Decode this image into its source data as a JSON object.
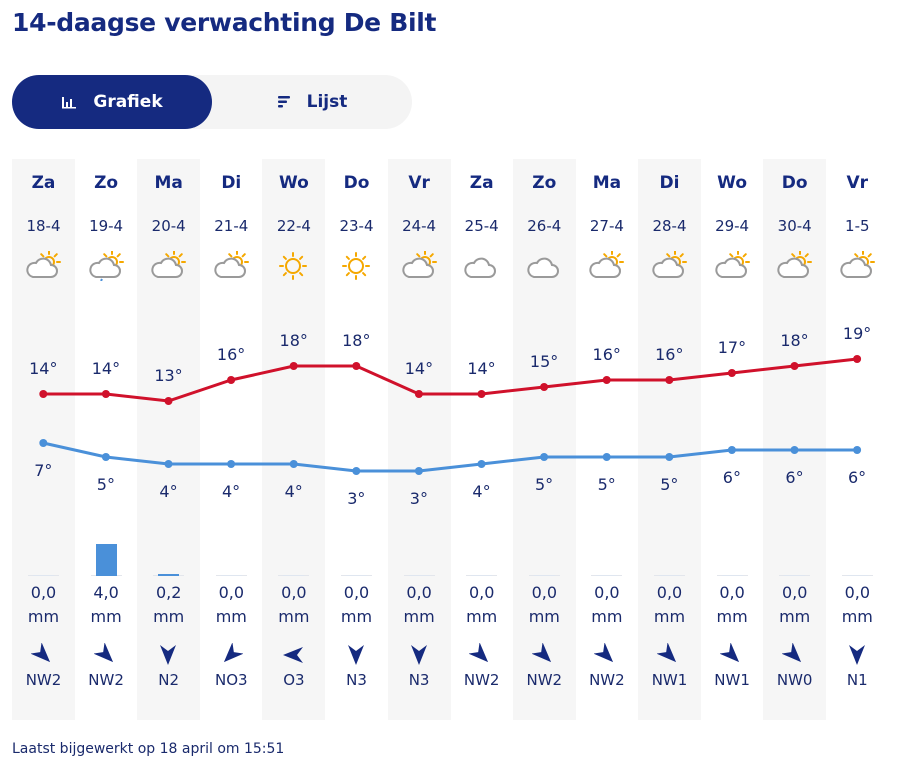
{
  "title": "14-daagse verwachting De Bilt",
  "toggle": {
    "grafiek": "Grafiek",
    "lijst": "Lijst"
  },
  "colors": {
    "brand": "#152a80",
    "max_line": "#d0112b",
    "min_line": "#4a90d9",
    "rain_bar": "#4a90d9",
    "sun": "#f5a800",
    "cloud": "#9a9a9a"
  },
  "days": [
    {
      "day": "Za",
      "date": "18-4",
      "icon": "partly-cloudy",
      "max": "14°",
      "min": "7°",
      "tmax": 14,
      "tmin": 7,
      "rain": "0,0",
      "rain_mm": 0.0,
      "unit": "mm",
      "wind": "NW2",
      "wind_dir": "NW"
    },
    {
      "day": "Zo",
      "date": "19-4",
      "icon": "partly-cloudy-rain",
      "max": "14°",
      "min": "5°",
      "tmax": 14,
      "tmin": 5,
      "rain": "4,0",
      "rain_mm": 4.0,
      "unit": "mm",
      "wind": "NW2",
      "wind_dir": "NW"
    },
    {
      "day": "Ma",
      "date": "20-4",
      "icon": "partly-cloudy",
      "max": "13°",
      "min": "4°",
      "tmax": 13,
      "tmin": 4,
      "rain": "0,2",
      "rain_mm": 0.2,
      "unit": "mm",
      "wind": "N2",
      "wind_dir": "N"
    },
    {
      "day": "Di",
      "date": "21-4",
      "icon": "partly-cloudy",
      "max": "16°",
      "min": "4°",
      "tmax": 16,
      "tmin": 4,
      "rain": "0,0",
      "rain_mm": 0.0,
      "unit": "mm",
      "wind": "NO3",
      "wind_dir": "NO"
    },
    {
      "day": "Wo",
      "date": "22-4",
      "icon": "sunny",
      "max": "18°",
      "min": "4°",
      "tmax": 18,
      "tmin": 4,
      "rain": "0,0",
      "rain_mm": 0.0,
      "unit": "mm",
      "wind": "O3",
      "wind_dir": "O"
    },
    {
      "day": "Do",
      "date": "23-4",
      "icon": "sunny",
      "max": "18°",
      "min": "3°",
      "tmax": 18,
      "tmin": 3,
      "rain": "0,0",
      "rain_mm": 0.0,
      "unit": "mm",
      "wind": "N3",
      "wind_dir": "N"
    },
    {
      "day": "Vr",
      "date": "24-4",
      "icon": "partly-cloudy",
      "max": "14°",
      "min": "3°",
      "tmax": 14,
      "tmin": 3,
      "rain": "0,0",
      "rain_mm": 0.0,
      "unit": "mm",
      "wind": "N3",
      "wind_dir": "N"
    },
    {
      "day": "Za",
      "date": "25-4",
      "icon": "cloudy",
      "max": "14°",
      "min": "4°",
      "tmax": 14,
      "tmin": 4,
      "rain": "0,0",
      "rain_mm": 0.0,
      "unit": "mm",
      "wind": "NW2",
      "wind_dir": "NW"
    },
    {
      "day": "Zo",
      "date": "26-4",
      "icon": "cloudy",
      "max": "15°",
      "min": "5°",
      "tmax": 15,
      "tmin": 5,
      "rain": "0,0",
      "rain_mm": 0.0,
      "unit": "mm",
      "wind": "NW2",
      "wind_dir": "NW"
    },
    {
      "day": "Ma",
      "date": "27-4",
      "icon": "partly-cloudy",
      "max": "16°",
      "min": "5°",
      "tmax": 16,
      "tmin": 5,
      "rain": "0,0",
      "rain_mm": 0.0,
      "unit": "mm",
      "wind": "NW2",
      "wind_dir": "NW"
    },
    {
      "day": "Di",
      "date": "28-4",
      "icon": "partly-cloudy",
      "max": "16°",
      "min": "5°",
      "tmax": 16,
      "tmin": 5,
      "rain": "0,0",
      "rain_mm": 0.0,
      "unit": "mm",
      "wind": "NW1",
      "wind_dir": "NW"
    },
    {
      "day": "Wo",
      "date": "29-4",
      "icon": "partly-cloudy",
      "max": "17°",
      "min": "6°",
      "tmax": 17,
      "tmin": 6,
      "rain": "0,0",
      "rain_mm": 0.0,
      "unit": "mm",
      "wind": "NW1",
      "wind_dir": "NW"
    },
    {
      "day": "Do",
      "date": "30-4",
      "icon": "partly-cloudy",
      "max": "18°",
      "min": "6°",
      "tmax": 18,
      "tmin": 6,
      "rain": "0,0",
      "rain_mm": 0.0,
      "unit": "mm",
      "wind": "NW0",
      "wind_dir": "NW"
    },
    {
      "day": "Vr",
      "date": "1-5",
      "icon": "partly-cloudy",
      "max": "19°",
      "min": "6°",
      "tmax": 19,
      "tmin": 6,
      "rain": "0,0",
      "rain_mm": 0.0,
      "unit": "mm",
      "wind": "N1",
      "wind_dir": "N"
    }
  ],
  "footer": "Laatst bijgewerkt op 18 april om 15:51"
}
